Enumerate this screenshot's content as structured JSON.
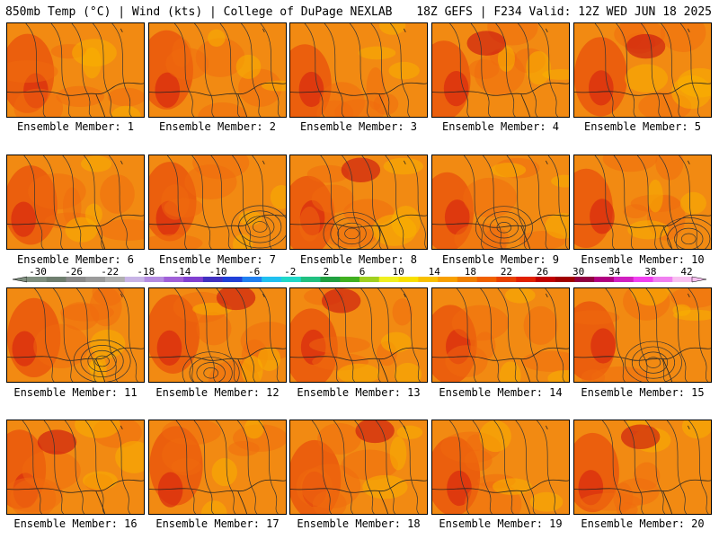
{
  "header": {
    "left": "850mb Temp (°C) | Wind (kts) | College of DuPage NEXLAB",
    "right": "18Z GEFS | F234 Valid: 12Z WED JUN 18 2025"
  },
  "member_label_prefix": "Ensemble Member: ",
  "members": [
    1,
    2,
    3,
    4,
    5,
    6,
    7,
    8,
    9,
    10,
    11,
    12,
    13,
    14,
    15,
    16,
    17,
    18,
    19,
    20
  ],
  "colorbar": {
    "tick_labels": [
      "-30",
      "-26",
      "-22",
      "-18",
      "-14",
      "-10",
      "-6",
      "-2",
      "2",
      "6",
      "10",
      "14",
      "18",
      "22",
      "26",
      "30",
      "34",
      "38",
      "42"
    ],
    "tick_values": [
      -30,
      -26,
      -22,
      -18,
      -14,
      -10,
      -6,
      -2,
      2,
      6,
      10,
      14,
      18,
      22,
      26,
      30,
      34,
      38,
      42
    ],
    "colors": [
      "#7f8f7f",
      "#6e7e6e",
      "#8a8a8a",
      "#9a9a9a",
      "#b0b0b0",
      "#c8b4e6",
      "#b48ce0",
      "#a060d8",
      "#8040d0",
      "#4030c0",
      "#2040d8",
      "#2080f0",
      "#20c0f0",
      "#20d8c8",
      "#20c080",
      "#20a040",
      "#40b020",
      "#a0d020",
      "#f0f020",
      "#f8e000",
      "#f8c000",
      "#f8a000",
      "#f08000",
      "#f06000",
      "#e84000",
      "#e02000",
      "#c00000",
      "#a00000",
      "#900040",
      "#b00080",
      "#d020c0",
      "#f040f0",
      "#f080f0",
      "#f8c0f0"
    ]
  }
}
